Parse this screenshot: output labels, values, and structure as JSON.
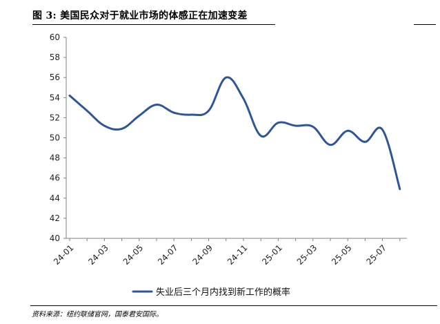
{
  "figure": {
    "title": "图 3:  美国民众对于就业市场的体感正在加速变差",
    "source": "资料来源：纽约联储官网，国泰君安国际。"
  },
  "chart_data": {
    "type": "line",
    "title": "",
    "xlabel": "",
    "ylabel": "",
    "ylim": [
      40,
      60
    ],
    "yticks": [
      40,
      42,
      44,
      46,
      48,
      50,
      52,
      54,
      56,
      58,
      60
    ],
    "grid": false,
    "legend_position": "bottom",
    "x_tick_labels": [
      "24-01",
      "24-03",
      "24-05",
      "24-07",
      "24-09",
      "24-11",
      "25-01",
      "25-03",
      "25-05",
      "25-07"
    ],
    "x": [
      "24-01",
      "24-02",
      "24-03",
      "24-04",
      "24-05",
      "24-06",
      "24-07",
      "24-08",
      "24-09",
      "24-10",
      "24-11",
      "24-12",
      "25-01",
      "25-02",
      "25-03",
      "25-04",
      "25-05",
      "25-06",
      "25-07",
      "25-08"
    ],
    "series": [
      {
        "name": "失业后三个月内找到新工作的概率",
        "color": "#2e5597",
        "values": [
          54.2,
          52.7,
          51.2,
          50.9,
          52.2,
          53.3,
          52.5,
          52.3,
          52.7,
          56.0,
          53.9,
          50.2,
          51.5,
          51.2,
          51.1,
          49.3,
          50.7,
          49.6,
          50.8,
          44.9
        ]
      }
    ]
  }
}
